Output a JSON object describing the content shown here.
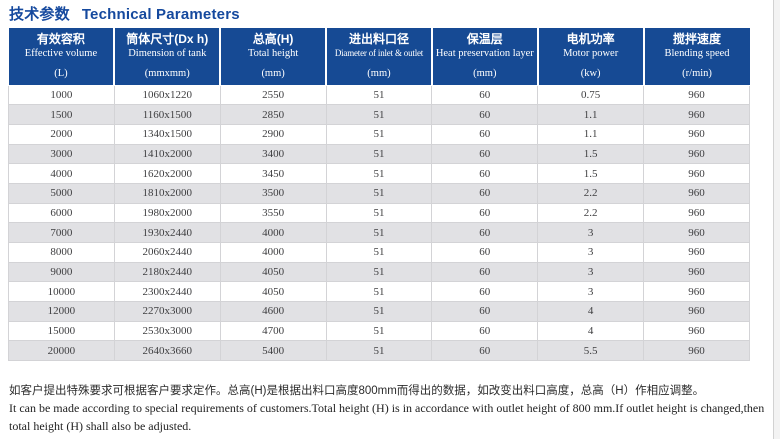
{
  "page": {
    "title_cn": "技术参数",
    "title_en": "Technical Parameters"
  },
  "colors": {
    "header_bg": "#164a94",
    "title_text": "#15499e",
    "row_alt": "#e1e1e4",
    "grid_line": "#d3d3d6"
  },
  "table": {
    "columns": [
      {
        "cn": "有效容积",
        "en": "Effective volume",
        "unit": "(L)"
      },
      {
        "cn": "筒体尺寸(Dx h)",
        "en": "Dimension of tank",
        "unit": "(mmxmm)"
      },
      {
        "cn": "总高(H)",
        "en": "Total height",
        "unit": "(mm)"
      },
      {
        "cn": "进出料口径",
        "en": "Diameter of inlet & outlet",
        "unit": "(mm)"
      },
      {
        "cn": "保温层",
        "en": "Heat preservation layer",
        "unit": "(mm)"
      },
      {
        "cn": "电机功率",
        "en": "Motor power",
        "unit": "(kw)"
      },
      {
        "cn": "搅拌速度",
        "en": "Blending speed",
        "unit": "(r/min)"
      }
    ],
    "rows": [
      [
        "1000",
        "1060x1220",
        "2550",
        "51",
        "60",
        "0.75",
        "960"
      ],
      [
        "1500",
        "1160x1500",
        "2850",
        "51",
        "60",
        "1.1",
        "960"
      ],
      [
        "2000",
        "1340x1500",
        "2900",
        "51",
        "60",
        "1.1",
        "960"
      ],
      [
        "3000",
        "1410x2000",
        "3400",
        "51",
        "60",
        "1.5",
        "960"
      ],
      [
        "4000",
        "1620x2000",
        "3450",
        "51",
        "60",
        "1.5",
        "960"
      ],
      [
        "5000",
        "1810x2000",
        "3500",
        "51",
        "60",
        "2.2",
        "960"
      ],
      [
        "6000",
        "1980x2000",
        "3550",
        "51",
        "60",
        "2.2",
        "960"
      ],
      [
        "7000",
        "1930x2440",
        "4000",
        "51",
        "60",
        "3",
        "960"
      ],
      [
        "8000",
        "2060x2440",
        "4000",
        "51",
        "60",
        "3",
        "960"
      ],
      [
        "9000",
        "2180x2440",
        "4050",
        "51",
        "60",
        "3",
        "960"
      ],
      [
        "10000",
        "2300x2440",
        "4050",
        "51",
        "60",
        "3",
        "960"
      ],
      [
        "12000",
        "2270x3000",
        "4600",
        "51",
        "60",
        "4",
        "960"
      ],
      [
        "15000",
        "2530x3000",
        "4700",
        "51",
        "60",
        "4",
        "960"
      ],
      [
        "20000",
        "2640x3660",
        "5400",
        "51",
        "60",
        "5.5",
        "960"
      ]
    ]
  },
  "footnote": {
    "cn": "如客户提出特殊要求可根据客户要求定作。总高(H)是根据出料口高度800mm而得出的数据，如改变出料口高度，总高（H）作相应调整。",
    "en_line1": "It can be made according to special requirements of customers.Total height (H) is in accordance with outlet height of 800 mm.If outlet height is changed,then",
    "en_line2": "total height (H) shall also be adjusted."
  }
}
